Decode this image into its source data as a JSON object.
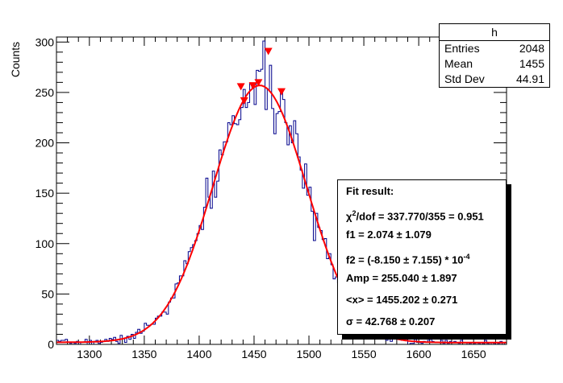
{
  "chart_data": {
    "type": "histogram",
    "title": "",
    "xlabel": "",
    "ylabel": "Counts",
    "xlim": [
      1270,
      1680
    ],
    "ylim": [
      0,
      305
    ],
    "xticks": [
      1300,
      1350,
      1400,
      1450,
      1500,
      1550,
      1600,
      1650
    ],
    "yticks": [
      0,
      50,
      100,
      150,
      200,
      250,
      300
    ],
    "bin_width": 2,
    "histogram_color": "#00008b",
    "fit_color": "#ff0000",
    "fit_function": {
      "amp": 255.04,
      "mean": 1455.202,
      "sigma": 42.768,
      "f1": 2.074,
      "f2": -0.000815
    },
    "peak_markers": [
      {
        "x": 1438,
        "y": 256
      },
      {
        "x": 1441,
        "y": 242
      },
      {
        "x": 1449,
        "y": 257
      },
      {
        "x": 1454,
        "y": 260
      },
      {
        "x": 1463,
        "y": 291
      },
      {
        "x": 1475,
        "y": 251
      }
    ],
    "marker_color": "#ff0000",
    "noise_seed": 7
  },
  "stats": {
    "title": "h",
    "rows": [
      {
        "label": "Entries",
        "value": "2048"
      },
      {
        "label": "Mean",
        "value": "1455"
      },
      {
        "label": "Std Dev",
        "value": "44.91"
      }
    ]
  },
  "fit": {
    "header": "Fit result:",
    "chi2_label": "χ",
    "chi2_sup": "2",
    "chi2_text": "/dof = 337.770/355 = 0.951",
    "f1": "f1 = 2.074 ± 1.079",
    "f2_main": "f2 = (-8.150 ± 7.155) * 10",
    "f2_exp": "-4",
    "amp": "Amp = 255.040 ± 1.897",
    "mean": "<x> = 1455.202 ± 0.271",
    "sigma": "σ = 42.768 ± 0.207"
  }
}
